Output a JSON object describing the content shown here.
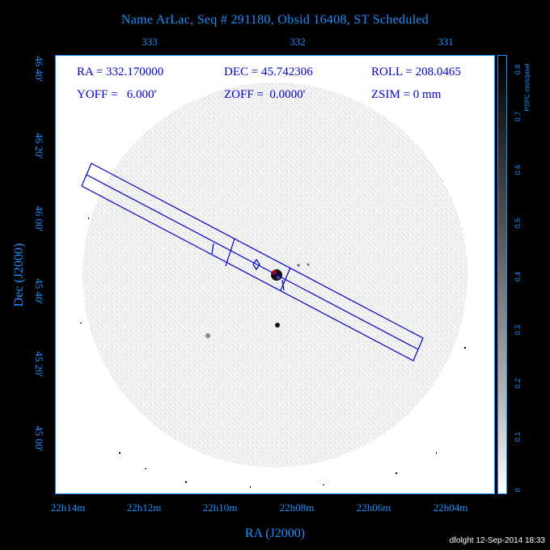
{
  "title": "Name ArLac, Seq # 291180, Obsid 16408, ST Scheduled",
  "top_axis_labels": [
    "333",
    "332",
    "331"
  ],
  "info": {
    "ra": "RA = 332.170000",
    "dec": "DEC = 45.742306",
    "roll": "ROLL = 208.0465",
    "yoff": "YOFF =   6.000'",
    "zoff": "ZOFF =  0.0000'",
    "zsim": "ZSIM = 0 mm"
  },
  "y_axis": {
    "title": "Dec (J2000)",
    "ticks": [
      "46 40'",
      "46 20'",
      "46 00'",
      "45 40'",
      "45 20'",
      "45 00'"
    ]
  },
  "x_axis": {
    "title": "RA (J2000)",
    "ticks": [
      "22h14m",
      "22h12m",
      "22h10m",
      "22h08m",
      "22h06m",
      "22h04m"
    ]
  },
  "colorbar": {
    "title": "PSPC cts/s/pixel",
    "ticks": [
      "0.8",
      "0.7",
      "0.6",
      "0.5",
      "0.4",
      "0.3",
      "0.2",
      "0.1",
      "0"
    ]
  },
  "footer": "dfolght 12-Sep-2014 18:33",
  "colors": {
    "axis": "#1e90ff",
    "overlay": "#0000cc",
    "background": "#000000"
  }
}
